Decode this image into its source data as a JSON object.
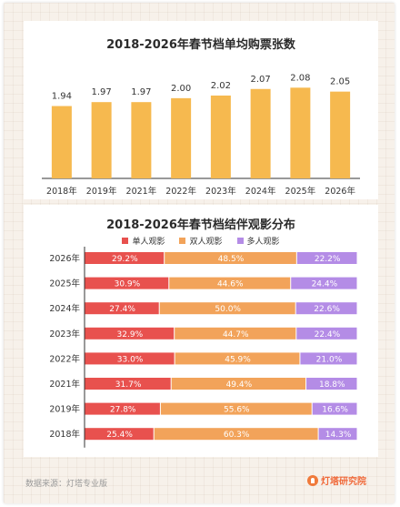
{
  "footer": {
    "source": "数据来源：灯塔专业版"
  },
  "brand": {
    "name": "灯塔研究院",
    "icon": "lighthouse-icon",
    "color": "#f06a3b"
  },
  "chart_data": [
    {
      "type": "bar",
      "title": "2018-2026年春节档单均购票张数",
      "categories": [
        "2018年",
        "2019年",
        "2021年",
        "2022年",
        "2023年",
        "2024年",
        "2025年",
        "2026年"
      ],
      "values": [
        1.94,
        1.97,
        1.97,
        2.0,
        2.02,
        2.07,
        2.08,
        2.05
      ],
      "value_labels": [
        "1.94",
        "1.97",
        "1.97",
        "2.00",
        "2.02",
        "2.07",
        "2.08",
        "2.05"
      ],
      "bar_color": "#f6b94f",
      "grid": false
    },
    {
      "type": "bar",
      "orientation": "horizontal",
      "stacked": true,
      "percent": true,
      "title": "2018-2026年春节档结伴观影分布",
      "legend_position": "top",
      "categories": [
        "2026年",
        "2025年",
        "2024年",
        "2023年",
        "2022年",
        "2021年",
        "2019年",
        "2018年"
      ],
      "series": [
        {
          "name": "单人观影",
          "color": "#e8514e",
          "values": [
            29.2,
            30.9,
            27.4,
            32.9,
            33.0,
            31.7,
            27.8,
            25.4
          ],
          "labels": [
            "29.2%",
            "30.9%",
            "27.4%",
            "32.9%",
            "33.0%",
            "31.7%",
            "27.8%",
            "25.4%"
          ]
        },
        {
          "name": "双人观影",
          "color": "#f2a35a",
          "values": [
            48.5,
            44.6,
            50.0,
            44.7,
            45.9,
            49.4,
            55.6,
            60.3
          ],
          "labels": [
            "48.5%",
            "44.6%",
            "50.0%",
            "44.7%",
            "45.9%",
            "49.4%",
            "55.6%",
            "60.3%"
          ]
        },
        {
          "name": "多人观影",
          "color": "#b48ce6",
          "values": [
            22.2,
            24.4,
            22.6,
            22.4,
            21.0,
            18.8,
            16.6,
            14.3
          ],
          "labels": [
            "22.2%",
            "24.4%",
            "22.6%",
            "22.4%",
            "21.0%",
            "18.8%",
            "16.6%",
            "14.3%"
          ]
        }
      ],
      "grid": false
    }
  ]
}
